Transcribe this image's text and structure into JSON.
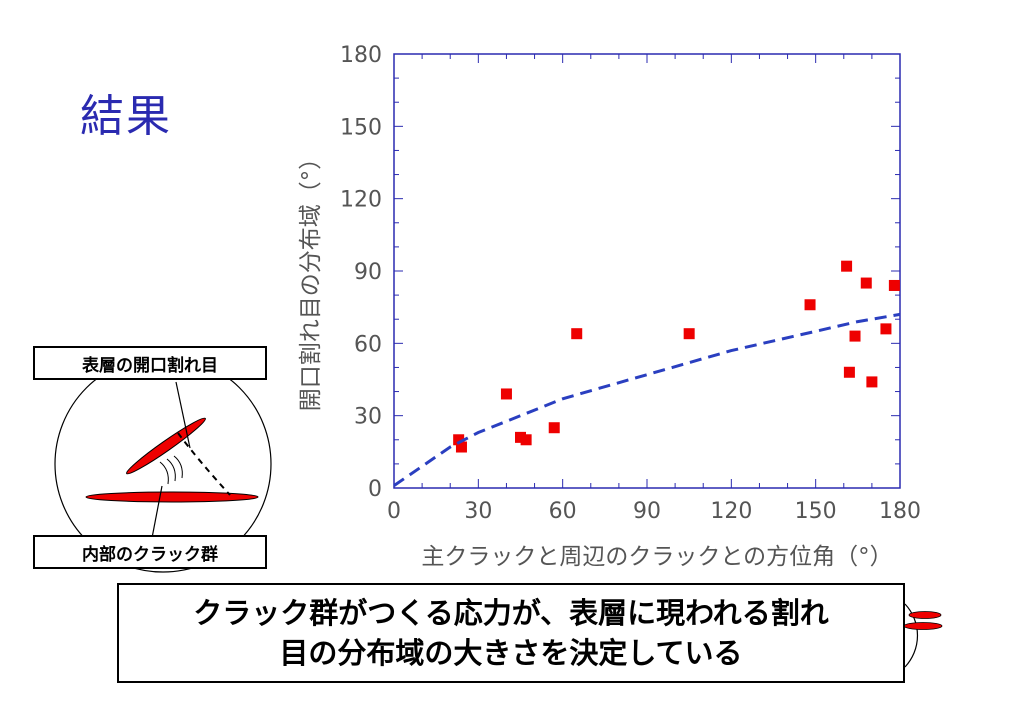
{
  "slide": {
    "title": "結果"
  },
  "labels": {
    "surface": "表層の開口割れ目",
    "internal": "内部のクラック群"
  },
  "conclusion": {
    "line1": "クラック群がつくる応力が、表層に現われる割れ",
    "line2": "目の分布域の大きさを決定している"
  },
  "colors": {
    "title": "#2a2ab0",
    "axis": "#2a2ab0",
    "points": "#ee0000",
    "fit_line": "#2a3fc0"
  },
  "chart_data": {
    "type": "scatter",
    "xlabel": "主クラックと周辺のクラックとの方位角（°）",
    "ylabel": "開口割れ目の分布域（°）",
    "xlim": [
      0,
      180
    ],
    "ylim": [
      0,
      180
    ],
    "xticks": [
      0,
      30,
      60,
      90,
      120,
      150,
      180
    ],
    "yticks": [
      0,
      30,
      60,
      90,
      120,
      150,
      180
    ],
    "grid": false,
    "series": [
      {
        "kind": "points",
        "x": [
          23,
          24,
          40,
          45,
          47,
          57,
          65,
          105,
          148,
          161,
          162,
          164,
          168,
          170,
          175,
          178
        ],
        "y": [
          20,
          17,
          39,
          21,
          20,
          25,
          64,
          64,
          76,
          92,
          48,
          63,
          85,
          44,
          66,
          84
        ]
      },
      {
        "kind": "fit-curve",
        "x": [
          0,
          10,
          20,
          30,
          45,
          60,
          75,
          90,
          105,
          120,
          135,
          150,
          165,
          180
        ],
        "y": [
          1,
          9,
          17,
          23,
          30,
          37,
          42,
          47,
          52,
          57,
          61,
          65,
          69,
          72
        ]
      }
    ]
  }
}
